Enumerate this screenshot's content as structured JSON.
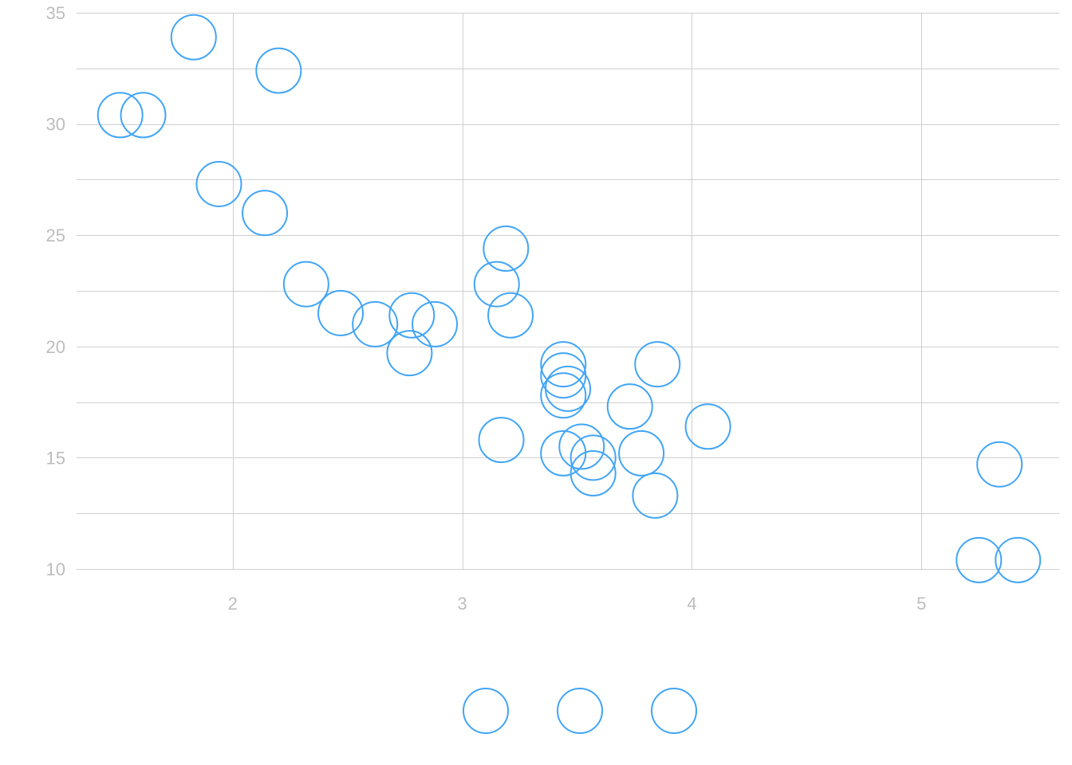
{
  "chart_data": {
    "type": "scatter",
    "title": "",
    "xlabel": "",
    "ylabel": "",
    "xlim": [
      1.32,
      5.6
    ],
    "ylim": [
      10,
      35
    ],
    "x_ticks": [
      2,
      3,
      4,
      5
    ],
    "y_ticks": [
      10,
      15,
      20,
      25,
      30,
      35
    ],
    "grid": true,
    "legend": {
      "placement": "bottom-center",
      "entries": 3
    },
    "colors": {
      "marker": "#42a5f5",
      "grid": "#cfcfcf",
      "tick_text": "#bdbdbd"
    },
    "series": [
      {
        "points": [
          {
            "x": 1.51,
            "y": 30.4
          },
          {
            "x": 1.61,
            "y": 30.4
          },
          {
            "x": 1.83,
            "y": 33.9
          },
          {
            "x": 1.94,
            "y": 27.3
          },
          {
            "x": 2.14,
            "y": 26.0
          },
          {
            "x": 2.2,
            "y": 32.4
          },
          {
            "x": 2.32,
            "y": 22.8
          },
          {
            "x": 2.47,
            "y": 21.5
          },
          {
            "x": 2.62,
            "y": 21.0
          },
          {
            "x": 2.77,
            "y": 19.7
          },
          {
            "x": 2.78,
            "y": 21.4
          },
          {
            "x": 2.88,
            "y": 21.0
          },
          {
            "x": 3.15,
            "y": 22.8
          },
          {
            "x": 3.17,
            "y": 15.8
          },
          {
            "x": 3.19,
            "y": 24.4
          },
          {
            "x": 3.21,
            "y": 21.4
          },
          {
            "x": 3.44,
            "y": 18.7
          },
          {
            "x": 3.44,
            "y": 19.2
          },
          {
            "x": 3.44,
            "y": 17.8
          },
          {
            "x": 3.44,
            "y": 15.2
          },
          {
            "x": 3.46,
            "y": 18.1
          },
          {
            "x": 3.52,
            "y": 15.5
          },
          {
            "x": 3.57,
            "y": 14.3
          },
          {
            "x": 3.57,
            "y": 15.0
          },
          {
            "x": 3.73,
            "y": 17.3
          },
          {
            "x": 3.78,
            "y": 15.2
          },
          {
            "x": 3.84,
            "y": 13.3
          },
          {
            "x": 3.85,
            "y": 19.2
          },
          {
            "x": 4.07,
            "y": 16.4
          },
          {
            "x": 5.25,
            "y": 10.4
          },
          {
            "x": 5.34,
            "y": 14.7
          },
          {
            "x": 5.42,
            "y": 10.4
          }
        ]
      }
    ]
  }
}
